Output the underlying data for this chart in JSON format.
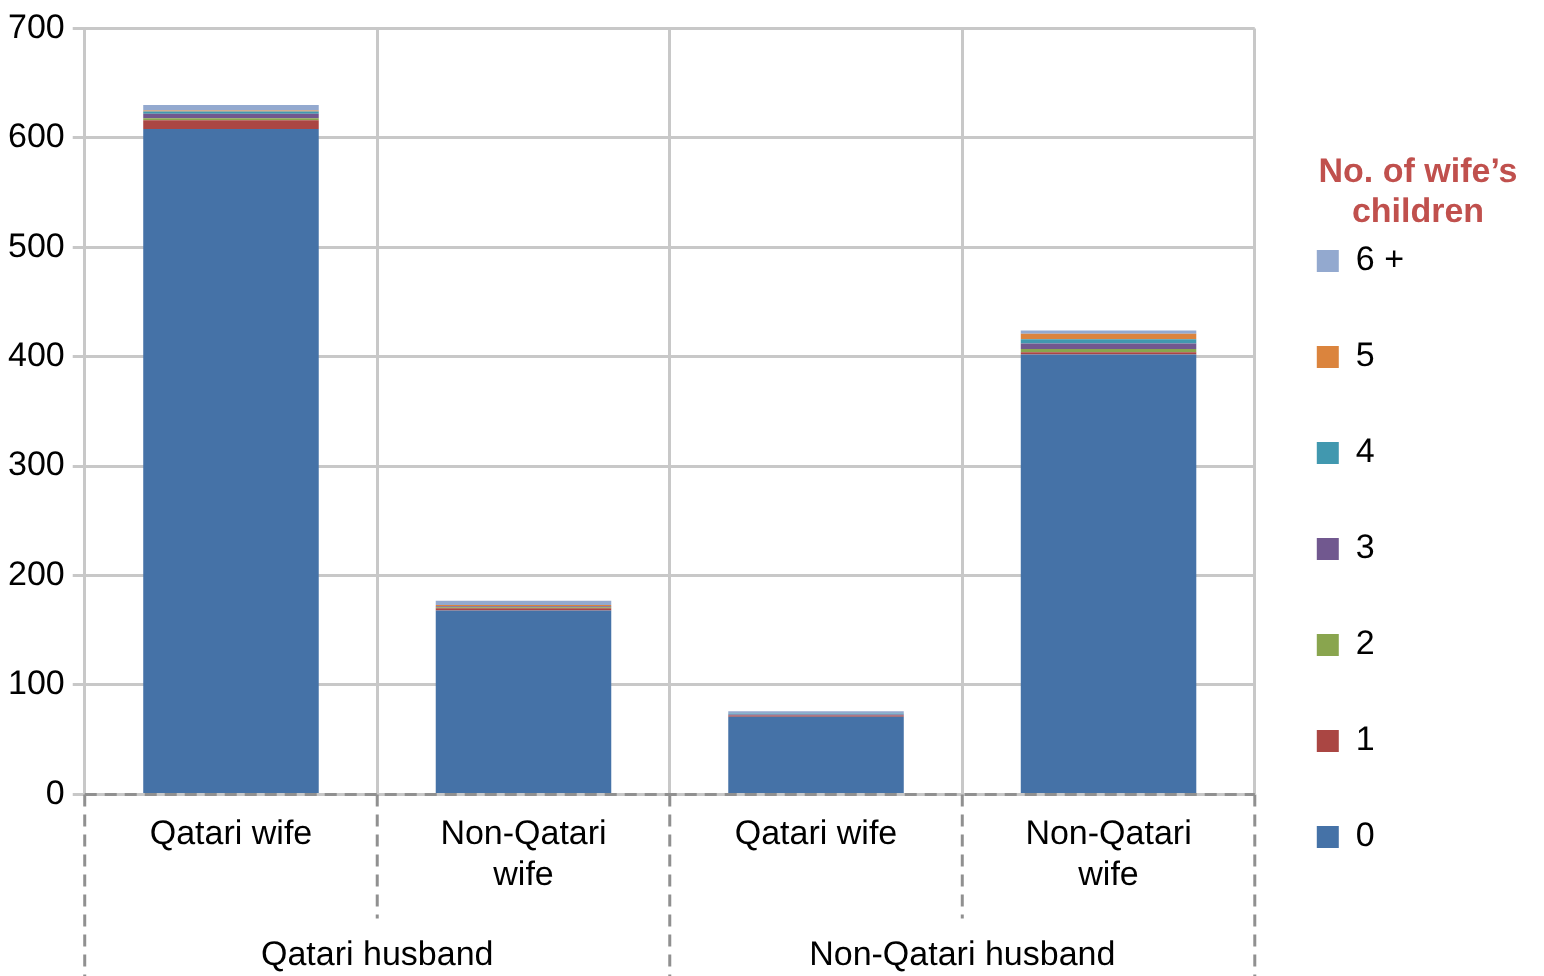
{
  "chart_data": {
    "type": "bar",
    "stacked": true,
    "categories": [
      "Qatari wife",
      "Non-Qatari wife",
      "Qatari wife",
      "Non-Qatari wife"
    ],
    "series": [
      {
        "name": "0",
        "color": "#4572a7",
        "values": [
          608,
          168,
          71,
          402
        ]
      },
      {
        "name": "1",
        "color": "#aa4643",
        "values": [
          8,
          2,
          1,
          2
        ]
      },
      {
        "name": "2",
        "color": "#89a54e",
        "values": [
          2,
          1,
          0,
          3
        ]
      },
      {
        "name": "3",
        "color": "#71588f",
        "values": [
          4,
          1,
          1,
          5
        ]
      },
      {
        "name": "4",
        "color": "#4198af",
        "values": [
          2,
          0,
          1,
          4
        ]
      },
      {
        "name": "5",
        "color": "#db843d",
        "values": [
          1,
          1,
          0,
          5
        ]
      },
      {
        "name": "6 +",
        "color": "#93a9cf",
        "values": [
          5,
          4,
          2,
          3
        ]
      }
    ],
    "ylim": [
      0,
      700
    ],
    "yticks": [
      0,
      100,
      200,
      300,
      400,
      500,
      600,
      700
    ],
    "grid": true,
    "legend": "right",
    "legend_title": "No. of wife’s children",
    "annotations": [
      "Qatari husband",
      "Non-Qatari husband"
    ]
  }
}
